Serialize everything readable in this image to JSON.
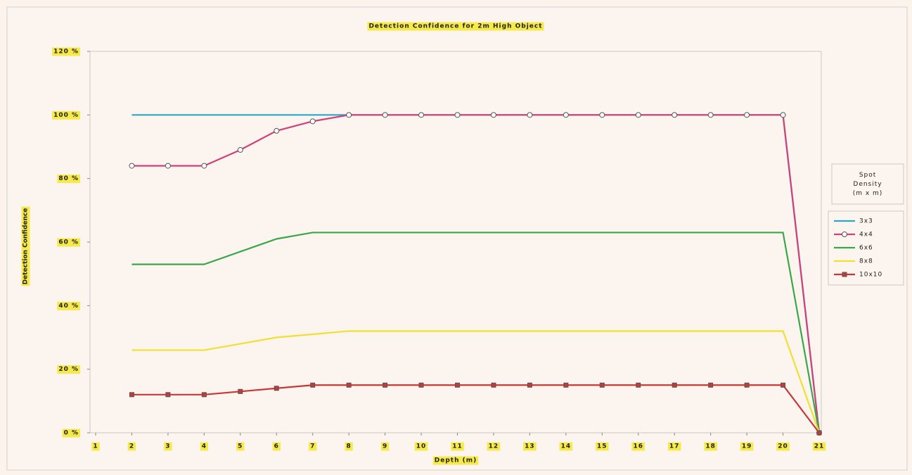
{
  "chart_data": {
    "type": "line",
    "title": "Detection Confidence for 2m High Object",
    "x_label": "Depth (m)",
    "y_label": "Detection Confidence",
    "legend_title": "Spot Density (m x m)",
    "legend": "right",
    "x": [
      2,
      3,
      4,
      5,
      6,
      7,
      8,
      9,
      10,
      11,
      12,
      13,
      14,
      15,
      16,
      17,
      18,
      19,
      20,
      21
    ],
    "xlim": [
      1,
      21
    ],
    "xticks": [
      1,
      2,
      3,
      4,
      5,
      6,
      7,
      8,
      9,
      10,
      11,
      12,
      13,
      14,
      15,
      16,
      17,
      18,
      19,
      20,
      21
    ],
    "ylim": [
      0,
      120
    ],
    "yticks": [
      {
        "value": 0,
        "label": "0 %"
      },
      {
        "value": 20,
        "label": "20 %"
      },
      {
        "value": 40,
        "label": "40 %"
      },
      {
        "value": 60,
        "label": "60 %"
      },
      {
        "value": 80,
        "label": "80 %"
      },
      {
        "value": 100,
        "label": "100 %"
      },
      {
        "value": 120,
        "label": "120 %"
      }
    ],
    "series": [
      {
        "name": "3x3",
        "color": "#2aa8c8",
        "marker": "none",
        "values": [
          100,
          100,
          100,
          100,
          100,
          100,
          100,
          100,
          100,
          100,
          100,
          100,
          100,
          100,
          100,
          100,
          100,
          100,
          100,
          0
        ]
      },
      {
        "name": "4x4",
        "color": "#d0407a",
        "marker": "circle",
        "values": [
          84,
          84,
          84,
          89,
          95,
          98,
          100,
          100,
          100,
          100,
          100,
          100,
          100,
          100,
          100,
          100,
          100,
          100,
          100,
          0
        ]
      },
      {
        "name": "6x6",
        "color": "#3aa84a",
        "marker": "none",
        "values": [
          53,
          53,
          53,
          57,
          61,
          63,
          63,
          63,
          63,
          63,
          63,
          63,
          63,
          63,
          63,
          63,
          63,
          63,
          63,
          0
        ]
      },
      {
        "name": "8x8",
        "color": "#f0e030",
        "marker": "none",
        "values": [
          26,
          26,
          26,
          28,
          30,
          31,
          32,
          32,
          32,
          32,
          32,
          32,
          32,
          32,
          32,
          32,
          32,
          32,
          32,
          0
        ]
      },
      {
        "name": "10x10",
        "color": "#c83838",
        "marker": "square",
        "values": [
          12,
          12,
          12,
          13,
          14,
          15,
          15,
          15,
          15,
          15,
          15,
          15,
          15,
          15,
          15,
          15,
          15,
          15,
          15,
          0
        ]
      }
    ]
  }
}
